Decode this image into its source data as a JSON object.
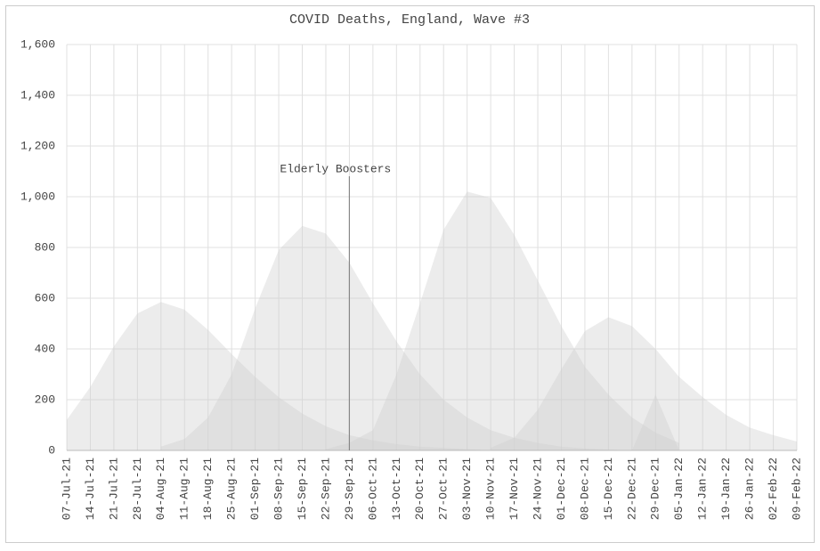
{
  "chart_data": {
    "type": "area",
    "title": "COVID Deaths, England, Wave #3",
    "categories": [
      "07-Jul-21",
      "14-Jul-21",
      "21-Jul-21",
      "28-Jul-21",
      "04-Aug-21",
      "11-Aug-21",
      "18-Aug-21",
      "25-Aug-21",
      "01-Sep-21",
      "08-Sep-21",
      "15-Sep-21",
      "22-Sep-21",
      "29-Sep-21",
      "06-Oct-21",
      "13-Oct-21",
      "20-Oct-21",
      "27-Oct-21",
      "03-Nov-21",
      "10-Nov-21",
      "17-Nov-21",
      "24-Nov-21",
      "01-Dec-21",
      "08-Dec-21",
      "15-Dec-21",
      "22-Dec-21",
      "29-Dec-21",
      "05-Jan-22",
      "12-Jan-22",
      "19-Jan-22",
      "26-Jan-22",
      "02-Feb-22",
      "09-Feb-22"
    ],
    "series": [
      {
        "color": "#cfcfcf",
        "values": [
          120,
          250,
          410,
          540,
          585,
          555,
          475,
          380,
          290,
          210,
          145,
          95,
          60,
          40,
          25,
          15,
          10,
          5,
          0,
          null,
          null,
          null,
          null,
          null,
          null,
          null,
          null,
          null,
          null,
          null,
          null,
          null
        ]
      },
      {
        "color": "#cfcfcf",
        "values": [
          null,
          null,
          null,
          null,
          15,
          45,
          130,
          300,
          560,
          790,
          885,
          855,
          740,
          580,
          430,
          300,
          200,
          130,
          80,
          50,
          30,
          15,
          8,
          3,
          0,
          null,
          null,
          null,
          null,
          null,
          null,
          null
        ]
      },
      {
        "color": "#cfcfcf",
        "values": [
          null,
          null,
          null,
          null,
          null,
          null,
          null,
          null,
          null,
          null,
          null,
          5,
          30,
          80,
          300,
          580,
          870,
          1020,
          995,
          850,
          670,
          490,
          330,
          220,
          130,
          70,
          30,
          null,
          null,
          null,
          null,
          null
        ]
      },
      {
        "color": "#cfcfcf",
        "values": [
          null,
          null,
          null,
          null,
          null,
          null,
          null,
          null,
          null,
          null,
          null,
          null,
          null,
          null,
          null,
          null,
          null,
          null,
          10,
          50,
          160,
          320,
          470,
          525,
          490,
          400,
          290,
          210,
          140,
          90,
          60,
          35
        ]
      },
      {
        "color": "#cfcfcf",
        "values": [
          null,
          null,
          null,
          null,
          null,
          null,
          null,
          null,
          null,
          null,
          null,
          null,
          null,
          null,
          null,
          null,
          null,
          null,
          null,
          null,
          null,
          null,
          null,
          null,
          0,
          220,
          0,
          null,
          null,
          null,
          null,
          null
        ]
      }
    ],
    "ylim": [
      0,
      1600
    ],
    "yticks": [
      0,
      200,
      400,
      600,
      800,
      {
        "value": 1000,
        "label": "1,000"
      },
      {
        "value": 1200,
        "label": "1,200"
      },
      {
        "value": 1400,
        "label": "1,400"
      },
      {
        "value": 1600,
        "label": "1,600"
      }
    ],
    "grid": true,
    "annotation": {
      "text": "Elderly Boosters",
      "x": "29-Sep-21"
    }
  }
}
